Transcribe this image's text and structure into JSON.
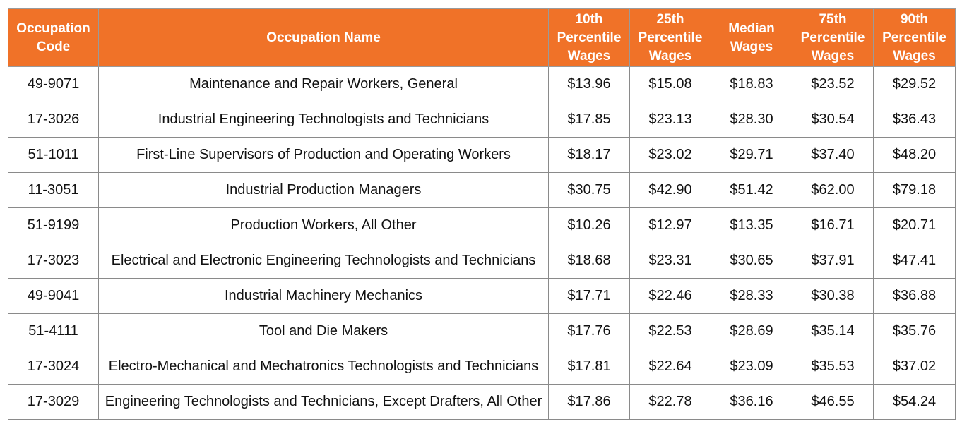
{
  "table": {
    "headers": [
      "Occupation Code",
      "Occupation Name",
      "10th Percentile Wages",
      "25th Percentile Wages",
      "Median Wages",
      "75th Percentile Wages",
      "90th Percentile Wages"
    ],
    "rows": [
      [
        "49-9071",
        "Maintenance and Repair Workers, General",
        "$13.96",
        "$15.08",
        "$18.83",
        "$23.52",
        "$29.52"
      ],
      [
        "17-3026",
        "Industrial Engineering Technologists and Technicians",
        "$17.85",
        "$23.13",
        "$28.30",
        "$30.54",
        "$36.43"
      ],
      [
        "51-1011",
        "First-Line Supervisors of Production and Operating Workers",
        "$18.17",
        "$23.02",
        "$29.71",
        "$37.40",
        "$48.20"
      ],
      [
        "11-3051",
        "Industrial Production Managers",
        "$30.75",
        "$42.90",
        "$51.42",
        "$62.00",
        "$79.18"
      ],
      [
        "51-9199",
        "Production Workers, All Other",
        "$10.26",
        "$12.97",
        "$13.35",
        "$16.71",
        "$20.71"
      ],
      [
        "17-3023",
        "Electrical and Electronic Engineering Technologists and Technicians",
        "$18.68",
        "$23.31",
        "$30.65",
        "$37.91",
        "$47.41"
      ],
      [
        "49-9041",
        "Industrial Machinery Mechanics",
        "$17.71",
        "$22.46",
        "$28.33",
        "$30.38",
        "$36.88"
      ],
      [
        "51-4111",
        "Tool and Die Makers",
        "$17.76",
        "$22.53",
        "$28.69",
        "$35.14",
        "$35.76"
      ],
      [
        "17-3024",
        "Electro-Mechanical and Mechatronics Technologists and Technicians",
        "$17.81",
        "$22.64",
        "$23.09",
        "$35.53",
        "$37.02"
      ],
      [
        "17-3029",
        "Engineering Technologists and Technicians, Except Drafters, All Other",
        "$17.86",
        "$22.78",
        "$36.16",
        "$46.55",
        "$54.24"
      ]
    ]
  },
  "colors": {
    "header_background": "#f07228",
    "header_text": "#ffffff",
    "grid_lines": "#8a8a8a"
  }
}
